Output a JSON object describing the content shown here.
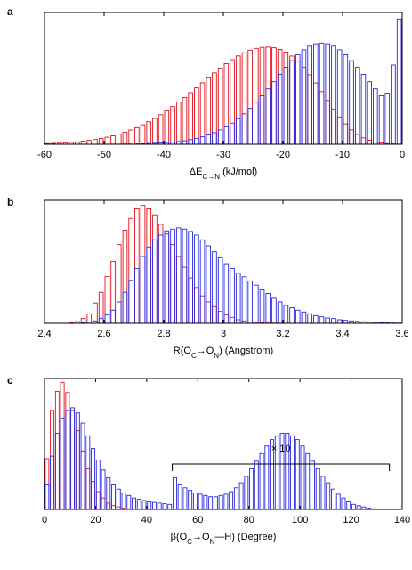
{
  "chart_data": [
    {
      "type": "histogram",
      "panel_label": "a",
      "xlabel": {
        "base": "ΔE",
        "sub": "C→N",
        "rest": " (kJ/mol)"
      },
      "ylabel": "",
      "xlim": [
        -60,
        0
      ],
      "xticks": [
        "-60",
        "-50",
        "-40",
        "-30",
        "-20",
        "-10",
        "0"
      ],
      "bin_width": 1,
      "series": [
        {
          "color": "#e0101a",
          "values": [
            0.005,
            0.007,
            0.009,
            0.012,
            0.015,
            0.019,
            0.024,
            0.03,
            0.037,
            0.045,
            0.055,
            0.066,
            0.079,
            0.094,
            0.111,
            0.13,
            0.152,
            0.176,
            0.202,
            0.231,
            0.262,
            0.295,
            0.33,
            0.366,
            0.404,
            0.442,
            0.481,
            0.52,
            0.558,
            0.595,
            0.63,
            0.662,
            0.691,
            0.716,
            0.736,
            0.75,
            0.758,
            0.76,
            0.755,
            0.742,
            0.721,
            0.69,
            0.65,
            0.601,
            0.544,
            0.48,
            0.412,
            0.343,
            0.276,
            0.214,
            0.159,
            0.113,
            0.077,
            0.05,
            0.031,
            0.018,
            0.01,
            0.005,
            0.003,
            0.001
          ]
        },
        {
          "color": "#2828e0",
          "values": [
            0.0,
            0.0,
            0.0,
            0.0,
            0.0,
            0.0,
            0.0,
            0.0,
            0.0,
            0.0,
            0.0,
            0.001,
            0.001,
            0.002,
            0.002,
            0.003,
            0.004,
            0.006,
            0.008,
            0.01,
            0.013,
            0.017,
            0.022,
            0.028,
            0.036,
            0.046,
            0.058,
            0.073,
            0.091,
            0.112,
            0.137,
            0.166,
            0.2,
            0.238,
            0.281,
            0.329,
            0.38,
            0.434,
            0.49,
            0.547,
            0.602,
            0.654,
            0.7,
            0.739,
            0.768,
            0.786,
            0.792,
            0.786,
            0.768,
            0.739,
            0.7,
            0.654,
            0.602,
            0.547,
            0.49,
            0.434,
            0.38,
            0.4,
            0.62,
            0.98
          ]
        }
      ]
    },
    {
      "type": "histogram",
      "panel_label": "b",
      "xlabel": {
        "base": "R(O",
        "sub1": "C",
        "mid": "→O",
        "sub2": "N",
        "rest": ") (Angstrom)"
      },
      "ylabel": "",
      "xlim": [
        2.4,
        3.6
      ],
      "xticks": [
        "2.4",
        "2.6",
        "2.8",
        "3",
        "3.2",
        "3.4",
        "3.6"
      ],
      "bin_width": 0.02,
      "series": [
        {
          "color": "#e0101a",
          "values": [
            0.0,
            0.0,
            0.0,
            0.0,
            0.006,
            0.014,
            0.04,
            0.08,
            0.17,
            0.26,
            0.392,
            0.52,
            0.66,
            0.78,
            0.88,
            0.96,
            0.99,
            0.96,
            0.91,
            0.83,
            0.75,
            0.66,
            0.56,
            0.47,
            0.38,
            0.3,
            0.23,
            0.18,
            0.14,
            0.1,
            0.07,
            0.05,
            0.03,
            0.02,
            0.012,
            0.008,
            0.005,
            0.003,
            0.002,
            0.001,
            0.0,
            0.0,
            0.0,
            0.0,
            0.0,
            0.0,
            0.0,
            0.0,
            0.0,
            0.0,
            0.0,
            0.0,
            0.0,
            0.0,
            0.0,
            0.0,
            0.0,
            0.0,
            0.0,
            0.0
          ]
        },
        {
          "color": "#2828e0",
          "values": [
            0.0,
            0.0,
            0.0,
            0.0,
            0.0,
            0.0,
            0.005,
            0.01,
            0.02,
            0.04,
            0.07,
            0.11,
            0.18,
            0.26,
            0.36,
            0.46,
            0.56,
            0.64,
            0.7,
            0.74,
            0.775,
            0.79,
            0.8,
            0.79,
            0.77,
            0.74,
            0.7,
            0.65,
            0.6,
            0.55,
            0.5,
            0.46,
            0.42,
            0.39,
            0.355,
            0.32,
            0.28,
            0.25,
            0.21,
            0.18,
            0.15,
            0.13,
            0.11,
            0.095,
            0.08,
            0.065,
            0.055,
            0.045,
            0.04,
            0.03,
            0.025,
            0.02,
            0.016,
            0.013,
            0.01,
            0.008,
            0.006,
            0.004,
            0.003,
            0.002
          ]
        }
      ]
    },
    {
      "type": "histogram",
      "panel_label": "c",
      "xlabel": {
        "base": "β(O",
        "sub1": "C",
        "mid": "→O",
        "sub2": "N",
        "rest": "—H) (Degree)"
      },
      "ylabel": "",
      "xlim": [
        0,
        140
      ],
      "xticks": [
        "0",
        "20",
        "40",
        "60",
        "80",
        "100",
        "120",
        "140"
      ],
      "bin_width": 2,
      "annotation": {
        "text": "× 10",
        "from": 50,
        "to": 135
      },
      "series": [
        {
          "color": "#e0101a",
          "values": [
            0.4,
            0.78,
            0.93,
            1.0,
            0.92,
            0.78,
            0.62,
            0.46,
            0.32,
            0.22,
            0.14,
            0.09,
            0.05,
            0.03,
            0.02,
            0.01,
            0.005,
            0.002,
            0.001,
            0.0,
            0.0,
            0.0,
            0.0,
            0.0,
            0.0,
            0.0,
            0.0,
            0.0,
            0.0,
            0.0,
            0.0,
            0.0,
            0.0,
            0.0,
            0.0,
            0.0,
            0.0,
            0.0,
            0.0,
            0.0,
            0.0,
            0.0,
            0.0,
            0.0,
            0.0,
            0.0,
            0.0,
            0.0,
            0.0,
            0.0,
            0.0,
            0.0,
            0.0,
            0.0,
            0.0,
            0.0,
            0.0,
            0.0,
            0.0,
            0.0,
            0.0,
            0.0,
            0.0,
            0.0,
            0.0,
            0.0,
            0.0,
            0.0,
            0.0,
            0.0
          ]
        },
        {
          "color": "#2828e0",
          "values": [
            0.2,
            0.42,
            0.6,
            0.72,
            0.78,
            0.8,
            0.76,
            0.68,
            0.58,
            0.48,
            0.39,
            0.31,
            0.25,
            0.2,
            0.16,
            0.13,
            0.11,
            0.09,
            0.08,
            0.07,
            0.06,
            0.055,
            0.05,
            0.045,
            0.04,
            0.25,
            0.2,
            0.17,
            0.15,
            0.13,
            0.12,
            0.11,
            0.1,
            0.1,
            0.11,
            0.12,
            0.14,
            0.17,
            0.21,
            0.26,
            0.32,
            0.38,
            0.44,
            0.5,
            0.55,
            0.58,
            0.6,
            0.6,
            0.58,
            0.55,
            0.5,
            0.44,
            0.38,
            0.32,
            0.26,
            0.21,
            0.16,
            0.12,
            0.09,
            0.06,
            0.04,
            0.03,
            0.02,
            0.01,
            0.005,
            0.0,
            0.0,
            0.0,
            0.0,
            0.0
          ]
        }
      ]
    }
  ]
}
